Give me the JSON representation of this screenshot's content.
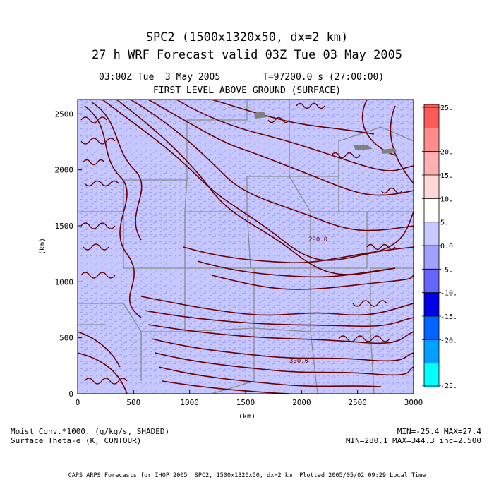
{
  "header": {
    "title_line1": "SPC2 (1500x1320x50, dx=2 km)",
    "title_line2": "27 h WRF Forecast valid 03Z Tue 03 May 2005",
    "time_label": "03:00Z Tue  3 May 2005",
    "time_seconds": "T=97200.0 s (27:00:00)",
    "level_label": "FIRST LEVEL ABOVE GROUND (SURFACE)"
  },
  "axes": {
    "x_label": "(km)",
    "y_label": "(km)",
    "x_ticks": [
      "0",
      "500",
      "1000",
      "1500",
      "2000",
      "2500",
      "3000"
    ],
    "y_ticks": [
      "0",
      "500",
      "1000",
      "1500",
      "2000",
      "2500"
    ]
  },
  "contour_labels": [
    "290.0",
    "300.0"
  ],
  "colorbar": {
    "labels": [
      "25.",
      "20.",
      "15.",
      "10.",
      "5.",
      "0.0",
      "-5.",
      "-10.",
      "-15.",
      "-20.",
      "-25."
    ],
    "colors": [
      "#ff5a5a",
      "#ff8c8c",
      "#ffb0b0",
      "#ffd8d8",
      "#ffffff",
      "#c9c9ff",
      "#a0a0ff",
      "#6666ff",
      "#0000e6",
      "#0064ff",
      "#00a0ff",
      "#00ffff"
    ]
  },
  "colors": {
    "shading_base": "#c6c8ff",
    "shading_dark": "#9a9cf4",
    "contour": "#6b0000",
    "boundary": "#808080"
  },
  "footer": {
    "field1": "Moist Conv.*1000. (g/kg/s, SHADED)",
    "field2": "Surface Theta-e (K, CONTOUR)",
    "stats1": "MIN=-25.4 MAX=27.4",
    "stats2": "MIN=280.1 MAX=344.3 inc=2.500",
    "credit": "CAPS ARPS Forecasts for IHOP 2005  SPC2, 1500x1320x50, dx=2 km  Plotted 2005/05/02 09:29 Local Time"
  }
}
